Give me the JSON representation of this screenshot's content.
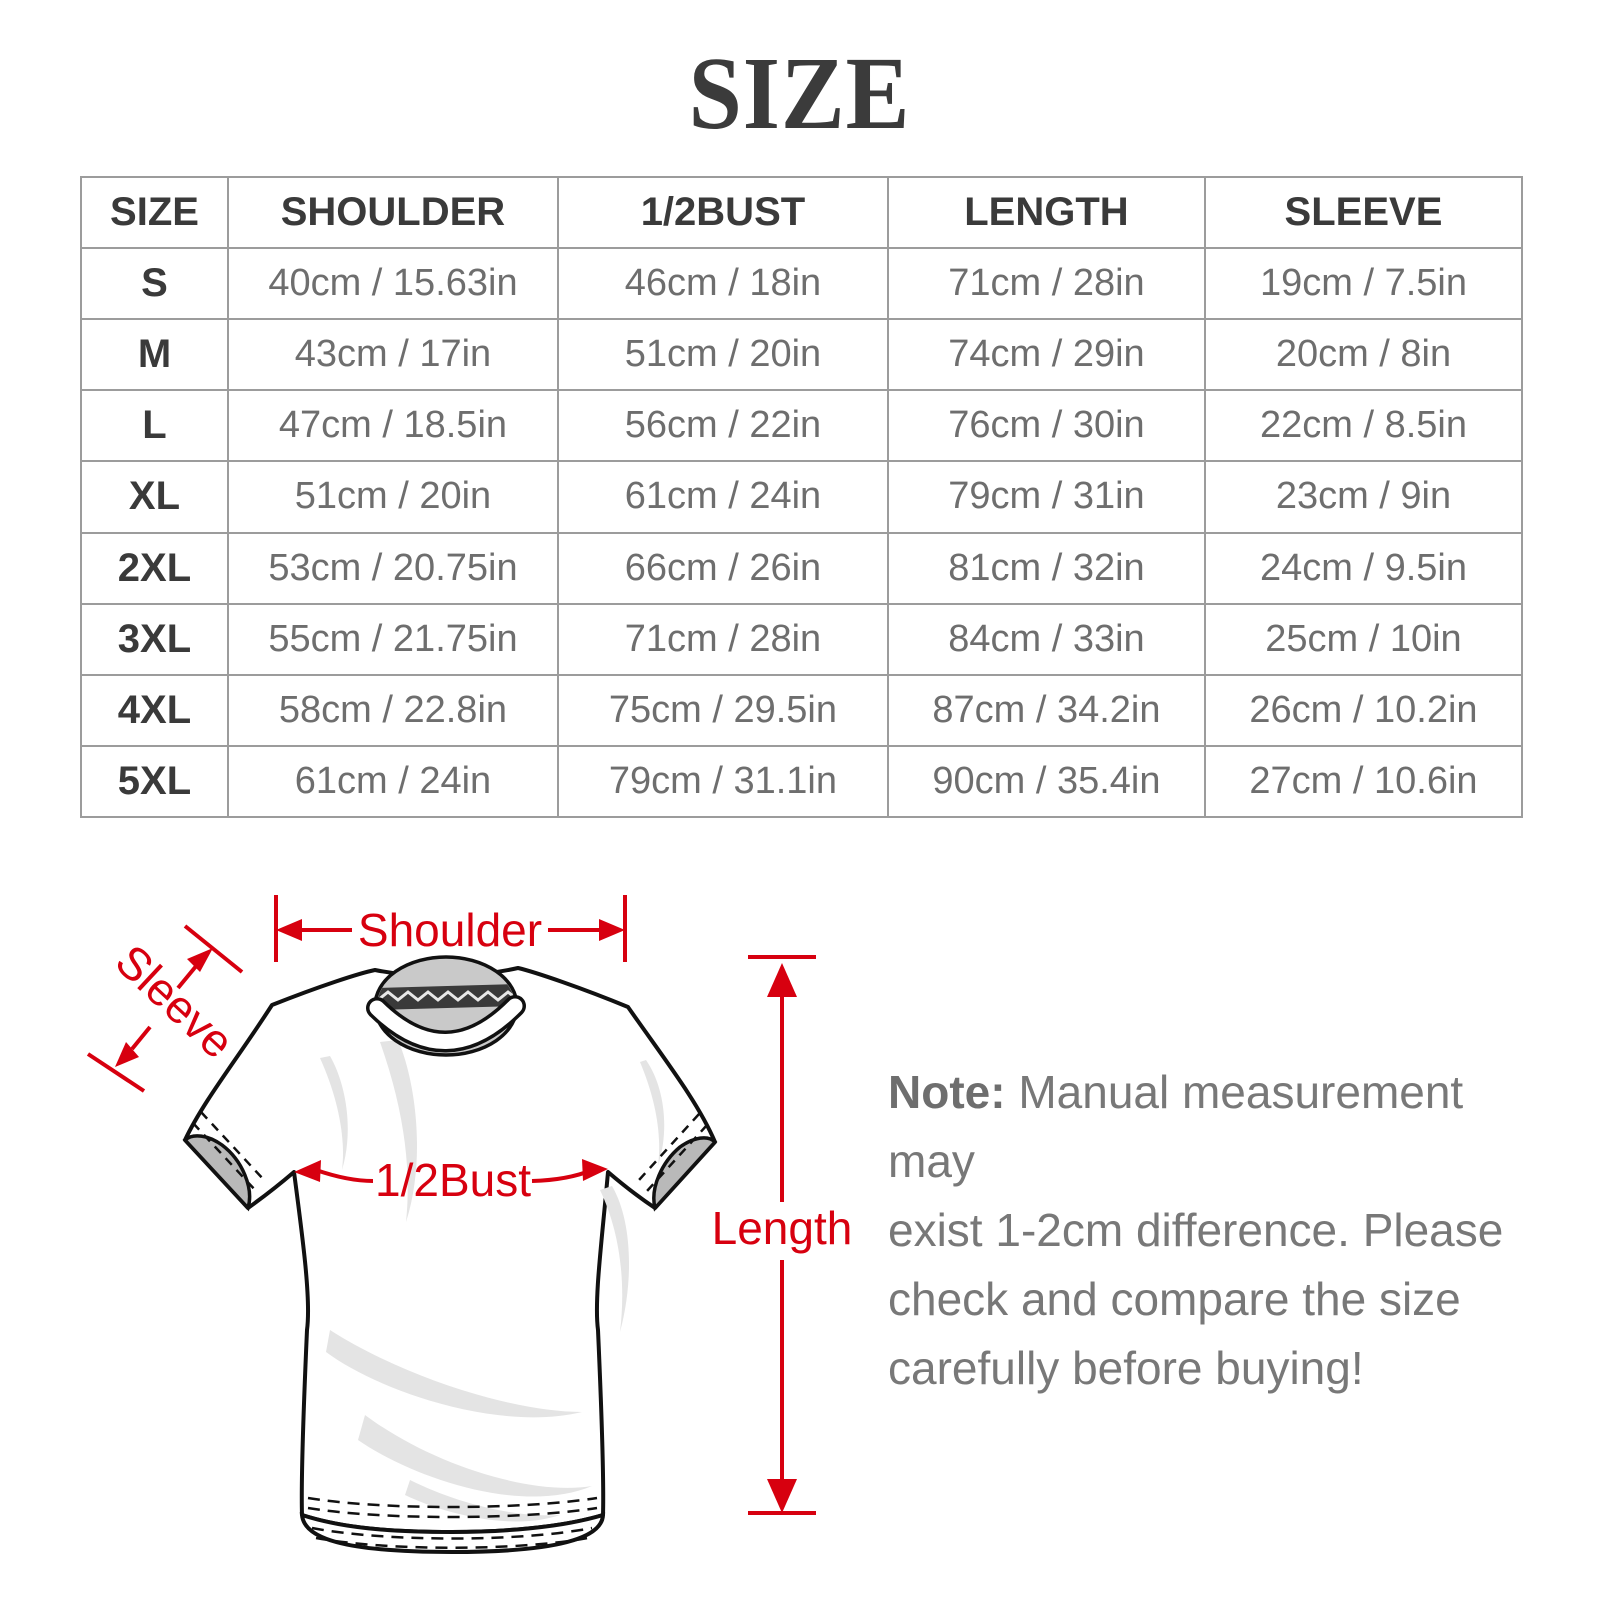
{
  "title": "SIZE",
  "table": {
    "headers": [
      "SIZE",
      "SHOULDER",
      "1/2BUST",
      "LENGTH",
      "SLEEVE"
    ],
    "rows": [
      [
        "S",
        "40cm / 15.63in",
        "46cm / 18in",
        "71cm / 28in",
        "19cm / 7.5in"
      ],
      [
        "M",
        "43cm / 17in",
        "51cm / 20in",
        "74cm / 29in",
        "20cm / 8in"
      ],
      [
        "L",
        "47cm / 18.5in",
        "56cm / 22in",
        "76cm / 30in",
        "22cm / 8.5in"
      ],
      [
        "XL",
        "51cm / 20in",
        "61cm / 24in",
        "79cm / 31in",
        "23cm / 9in"
      ],
      [
        "2XL",
        "53cm / 20.75in",
        "66cm / 26in",
        "81cm / 32in",
        "24cm / 9.5in"
      ],
      [
        "3XL",
        "55cm / 21.75in",
        "71cm / 28in",
        "84cm / 33in",
        "25cm / 10in"
      ],
      [
        "4XL",
        "58cm / 22.8in",
        "75cm / 29.5in",
        "87cm / 34.2in",
        "26cm / 10.2in"
      ],
      [
        "5XL",
        "61cm / 24in",
        "79cm / 31.1in",
        "90cm / 35.4in",
        "27cm / 10.6in"
      ]
    ]
  },
  "diagram": {
    "labels": {
      "shoulder": "Shoulder",
      "sleeve": "Sleeve",
      "bust": "1/2Bust",
      "length": "Length"
    },
    "accent_color": "#d7000f"
  },
  "note": {
    "label": "Note:",
    "lines": [
      "Manual measurement may",
      "exist 1-2cm difference. Please",
      "check and compare the size",
      "carefully before buying!"
    ]
  }
}
